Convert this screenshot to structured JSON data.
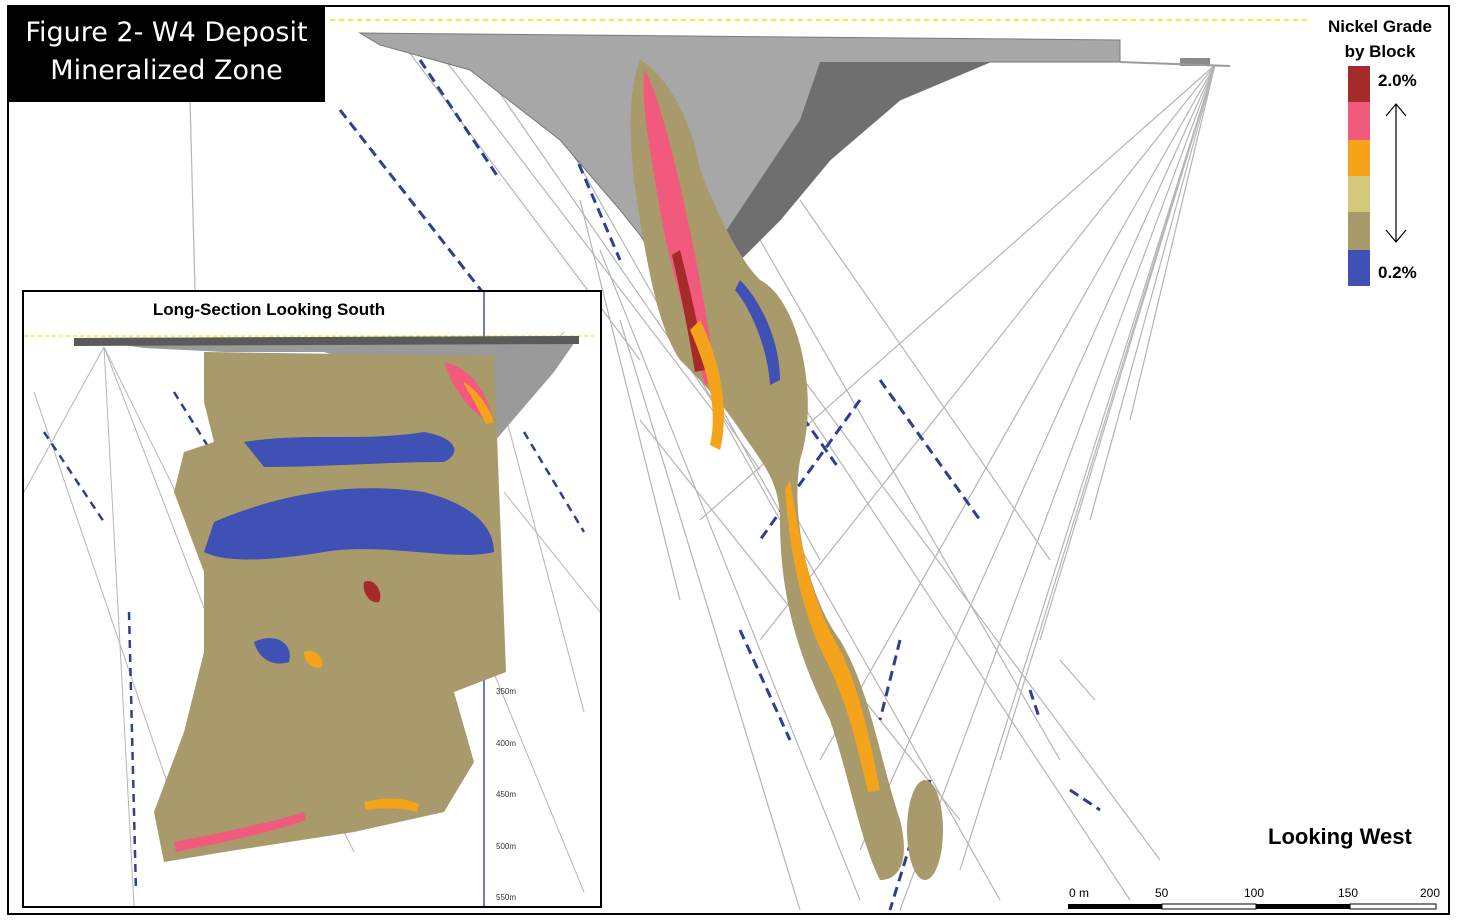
{
  "title": {
    "line1": "Figure 2- W4 Deposit",
    "line2": "Mineralized Zone"
  },
  "legend": {
    "title_line1": "Nickel Grade",
    "title_line2": "by Block",
    "max_label": "2.0%",
    "min_label": "0.2%",
    "colors": [
      "#a52a2a",
      "#f25a7d",
      "#f5a31a",
      "#d4c87a",
      "#a89a6b",
      "#3f51b5"
    ]
  },
  "view_label": "Looking West",
  "scale_bar": {
    "labels": [
      "0 m",
      "50",
      "100",
      "150",
      "200"
    ]
  },
  "inset": {
    "title": "Long-Section Looking South",
    "depth_labels": [
      "350m",
      "400m",
      "450m",
      "500m",
      "550m"
    ]
  },
  "colors": {
    "ore_high": "#a52a2a",
    "ore_pink": "#f25a7d",
    "ore_orange": "#f5a31a",
    "ore_khaki": "#a89a6b",
    "ore_light": "#d4c87a",
    "ore_low": "#3f51b5",
    "drillhole": "#b5b5b5",
    "pit": "#9a9a9a"
  }
}
